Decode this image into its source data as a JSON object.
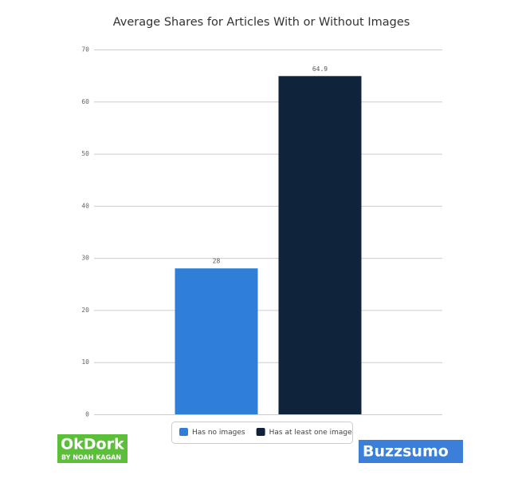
{
  "chart_data": {
    "type": "bar",
    "title": "Average Shares for Articles With or Without Images",
    "categories": [
      null
    ],
    "series": [
      {
        "name": "Has no images",
        "color": "#2f7ed8",
        "values": [
          28
        ]
      },
      {
        "name": "Has at least one image",
        "color": "#0f233b",
        "values": [
          64.9
        ]
      }
    ],
    "ylim": [
      0,
      70
    ],
    "yticks": [
      0,
      10,
      20,
      30,
      40,
      50,
      60,
      70
    ],
    "grid": true,
    "legend": "bottom"
  },
  "logos": [
    {
      "text": "OkDork",
      "subtext": "BY NOAH KAGAN",
      "color": "#5cbf3a"
    },
    {
      "text": "Buzzsumo",
      "color": "#3b7fd9"
    }
  ]
}
